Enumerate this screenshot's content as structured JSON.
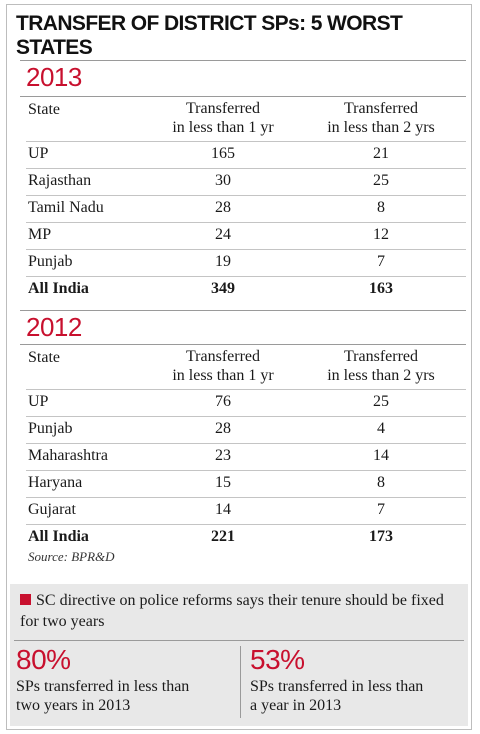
{
  "title": "TRANSFER OF DISTRICT SPs: 5 WORST STATES",
  "chart_data": [
    {
      "type": "table",
      "title": "2013",
      "columns": [
        "State",
        "Transferred in less than 1 yr",
        "Transferred in less than 2 yrs"
      ],
      "header": {
        "state": "State",
        "col1_line1": "Transferred",
        "col1_line2": "in less than 1 yr",
        "col2_line1": "Transferred",
        "col2_line2": "in less than 2 yrs"
      },
      "rows": [
        {
          "state": "UP",
          "lt1": 165,
          "lt2": 21
        },
        {
          "state": "Rajasthan",
          "lt1": 30,
          "lt2": 25
        },
        {
          "state": "Tamil Nadu",
          "lt1": 28,
          "lt2": 8
        },
        {
          "state": "MP",
          "lt1": 24,
          "lt2": 12
        },
        {
          "state": "Punjab",
          "lt1": 19,
          "lt2": 7
        }
      ],
      "total": {
        "state": "All India",
        "lt1": 349,
        "lt2": 163
      }
    },
    {
      "type": "table",
      "title": "2012",
      "columns": [
        "State",
        "Transferred in less than 1 yr",
        "Transferred in less than 2 yrs"
      ],
      "header": {
        "state": "State",
        "col1_line1": "Transferred",
        "col1_line2": "in less than 1 yr",
        "col2_line1": "Transferred",
        "col2_line2": "in less than 2 yrs"
      },
      "rows": [
        {
          "state": "UP",
          "lt1": 76,
          "lt2": 25
        },
        {
          "state": "Punjab",
          "lt1": 28,
          "lt2": 4
        },
        {
          "state": "Maharashtra",
          "lt1": 23,
          "lt2": 14
        },
        {
          "state": "Haryana",
          "lt1": 15,
          "lt2": 8
        },
        {
          "state": "Gujarat",
          "lt1": 14,
          "lt2": 7
        }
      ],
      "total": {
        "state": "All India",
        "lt1": 221,
        "lt2": 173
      }
    }
  ],
  "source": "Source: BPR&D",
  "note": "SC directive on police reforms says their tenure should be fixed for two years",
  "stats": [
    {
      "pct": "80%",
      "desc_line1": "SPs transferred in less than",
      "desc_line2": "two years in 2013"
    },
    {
      "pct": "53%",
      "desc_line1": "SPs transferred in less than",
      "desc_line2": "a year in 2013"
    }
  ],
  "colors": {
    "accent": "#c8102e",
    "note_bg": "#e8e8e8"
  }
}
